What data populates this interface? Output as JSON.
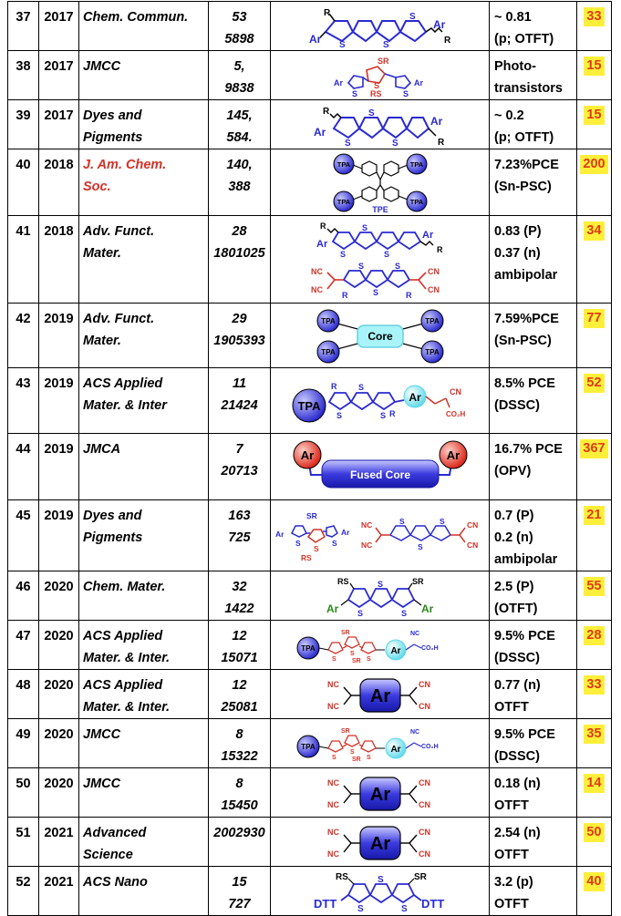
{
  "colors": {
    "red": "#d03328",
    "blue": "#2a2ad0",
    "highlight": "#ffef3a",
    "cite_text": "#e03a14"
  },
  "rows": [
    {
      "no": "37",
      "year": "2017",
      "journal": [
        "Chem. Commun."
      ],
      "vol": [
        "53",
        "5898"
      ],
      "perf": [
        "~ 0.81",
        "(p; OTFT)"
      ],
      "cites": "33"
    },
    {
      "no": "38",
      "year": "2017",
      "journal": [
        "JMCC"
      ],
      "vol": [
        "5,",
        "9838"
      ],
      "perf": [
        "Photo-",
        "transistors"
      ],
      "cites": "15"
    },
    {
      "no": "39",
      "year": "2017",
      "journal": [
        "Dyes and",
        "Pigments"
      ],
      "vol": [
        "145,",
        "584."
      ],
      "perf": [
        "~ 0.2",
        "(p; OTFT)"
      ],
      "cites": "15"
    },
    {
      "no": "40",
      "year": "2018",
      "journal": [
        "J. Am. Chem.",
        "Soc."
      ],
      "vol": [
        "140,",
        "388"
      ],
      "perf": [
        "7.23%PCE",
        "(Sn-PSC)"
      ],
      "cites": "200"
    },
    {
      "no": "41",
      "year": "2018",
      "journal": [
        "Adv. Funct.",
        "Mater."
      ],
      "vol": [
        "28",
        "1801025"
      ],
      "perf": [
        "0.83 (P)",
        "0.37 (n)",
        "ambipolar"
      ],
      "cites": "34"
    },
    {
      "no": "42",
      "year": "2019",
      "journal": [
        "Adv. Funct.",
        "Mater."
      ],
      "vol": [
        "29",
        "1905393"
      ],
      "perf": [
        "7.59%PCE",
        "(Sn-PSC)"
      ],
      "cites": "77"
    },
    {
      "no": "43",
      "year": "2019",
      "journal": [
        "ACS Applied",
        "Mater. & Inter"
      ],
      "vol": [
        "11",
        "21424"
      ],
      "perf": [
        "8.5% PCE",
        "(DSSC)"
      ],
      "cites": "52"
    },
    {
      "no": "44",
      "year": "2019",
      "journal": [
        "JMCA"
      ],
      "vol": [
        "7",
        "20713"
      ],
      "perf": [
        "16.7% PCE",
        "(OPV)"
      ],
      "cites": "367"
    },
    {
      "no": "45",
      "year": "2019",
      "journal": [
        "Dyes and",
        "Pigments"
      ],
      "vol": [
        "163",
        "725"
      ],
      "perf": [
        "0.7 (P)",
        "0.2 (n)",
        "ambipolar"
      ],
      "cites": "21"
    },
    {
      "no": "46",
      "year": "2020",
      "journal": [
        "Chem. Mater."
      ],
      "vol": [
        "32",
        "1422"
      ],
      "perf": [
        "2.5 (P)",
        "(OTFT)"
      ],
      "cites": "55"
    },
    {
      "no": "47",
      "year": "2020",
      "journal": [
        "ACS Applied",
        "Mater. & Inter."
      ],
      "vol": [
        "12",
        "15071"
      ],
      "perf": [
        "9.5% PCE",
        "(DSSC)"
      ],
      "cites": "28"
    },
    {
      "no": "48",
      "year": "2020",
      "journal": [
        "ACS Applied",
        "Mater. & Inter."
      ],
      "vol": [
        "12",
        "25081"
      ],
      "perf": [
        "0.77 (n)",
        "OTFT"
      ],
      "cites": "33"
    },
    {
      "no": "49",
      "year": "2020",
      "journal": [
        "JMCC"
      ],
      "vol": [
        "8",
        "15322"
      ],
      "perf": [
        "9.5% PCE",
        "(DSSC)"
      ],
      "cites": "35"
    },
    {
      "no": "50",
      "year": "2020",
      "journal": [
        "JMCC"
      ],
      "vol": [
        "8",
        "15450"
      ],
      "perf": [
        "0.18 (n)",
        "OTFT"
      ],
      "cites": "14"
    },
    {
      "no": "51",
      "year": "2021",
      "journal": [
        "Advanced",
        "Science"
      ],
      "vol": [
        "2002930"
      ],
      "perf": [
        "2.54 (n)",
        "OTFT"
      ],
      "cites": "50"
    },
    {
      "no": "52",
      "year": "2021",
      "journal": [
        "ACS Nano"
      ],
      "vol": [
        "15",
        "727"
      ],
      "perf": [
        "3.2 (p)",
        "OTFT"
      ],
      "cites": "40"
    }
  ],
  "structures": {
    "s37": {
      "icon": "fused-thiophene-structure-icon",
      "labels": [
        "R",
        "Ar",
        "S",
        "S",
        "S",
        "Ar",
        "R"
      ]
    },
    "s38": {
      "icon": "terthiophene-structure-icon",
      "labels": [
        "SR",
        "Ar",
        "S",
        "S",
        "S",
        "Ar",
        "RS"
      ]
    },
    "s39": {
      "icon": "fused-thiophene-structure-icon",
      "labels": [
        "R",
        "Ar",
        "S",
        "S",
        "S",
        "Ar",
        "R"
      ]
    },
    "s40": {
      "icon": "tpe-tpa-structure-icon",
      "labels": [
        "TPA",
        "TPA",
        "TPA",
        "TPA",
        "TPE"
      ]
    },
    "s41": {
      "icon": "fused-thiophene-dicyano-structure-icon",
      "labels": [
        "R",
        "Ar",
        "S",
        "S",
        "S",
        "Ar",
        "R",
        "NC",
        "NC",
        "CN",
        "CN",
        "S",
        "S",
        "S",
        "R",
        "R"
      ]
    },
    "s42": {
      "icon": "tpa-core-structure-icon",
      "labels": [
        "TPA",
        "TPA",
        "TPA",
        "TPA",
        "Core"
      ]
    },
    "s43": {
      "icon": "tpa-dssc-dye-structure-icon",
      "labels": [
        "TPA",
        "R",
        "R",
        "S",
        "S",
        "S",
        "Ar",
        "CN",
        "CO₂H"
      ]
    },
    "s44": {
      "icon": "fused-core-acceptor-structure-icon",
      "labels": [
        "Ar",
        "Ar",
        "Fused Core"
      ]
    },
    "s45": {
      "icon": "terthiophene-and-quinoidal-structure-icon",
      "labels": [
        "SR",
        "Ar",
        "S",
        "S",
        "S",
        "Ar",
        "RS",
        "NC",
        "NC",
        "CN",
        "CN",
        "S",
        "S",
        "S"
      ]
    },
    "s46": {
      "icon": "fused-thiophene-thioether-structure-icon",
      "labels": [
        "RS",
        "SR",
        "Ar",
        "Ar",
        "S",
        "S",
        "S"
      ]
    },
    "s47": {
      "icon": "tpa-terthiophene-dye-structure-icon",
      "labels": [
        "TPA",
        "SR",
        "SR",
        "S",
        "S",
        "S",
        "Ar",
        "NC",
        "CO₂H"
      ]
    },
    "s48": {
      "icon": "ar-dicyanovinyl-structure-icon",
      "labels": [
        "NC",
        "NC",
        "CN",
        "CN",
        "Ar"
      ]
    },
    "s49": {
      "icon": "tpa-terthiophene-dye-structure-icon",
      "labels": [
        "TPA",
        "SR",
        "SR",
        "S",
        "S",
        "S",
        "Ar",
        "NC",
        "CO₂H"
      ]
    },
    "s50": {
      "icon": "ar-dicyanovinyl-structure-icon",
      "labels": [
        "NC",
        "NC",
        "CN",
        "CN",
        "Ar"
      ]
    },
    "s51": {
      "icon": "ar-dicyanovinyl-structure-icon",
      "labels": [
        "NC",
        "NC",
        "CN",
        "CN",
        "Ar"
      ]
    },
    "s52": {
      "icon": "dtt-thioether-structure-icon",
      "labels": [
        "RS",
        "SR",
        "DTT",
        "DTT",
        "S",
        "S",
        "S"
      ]
    }
  }
}
